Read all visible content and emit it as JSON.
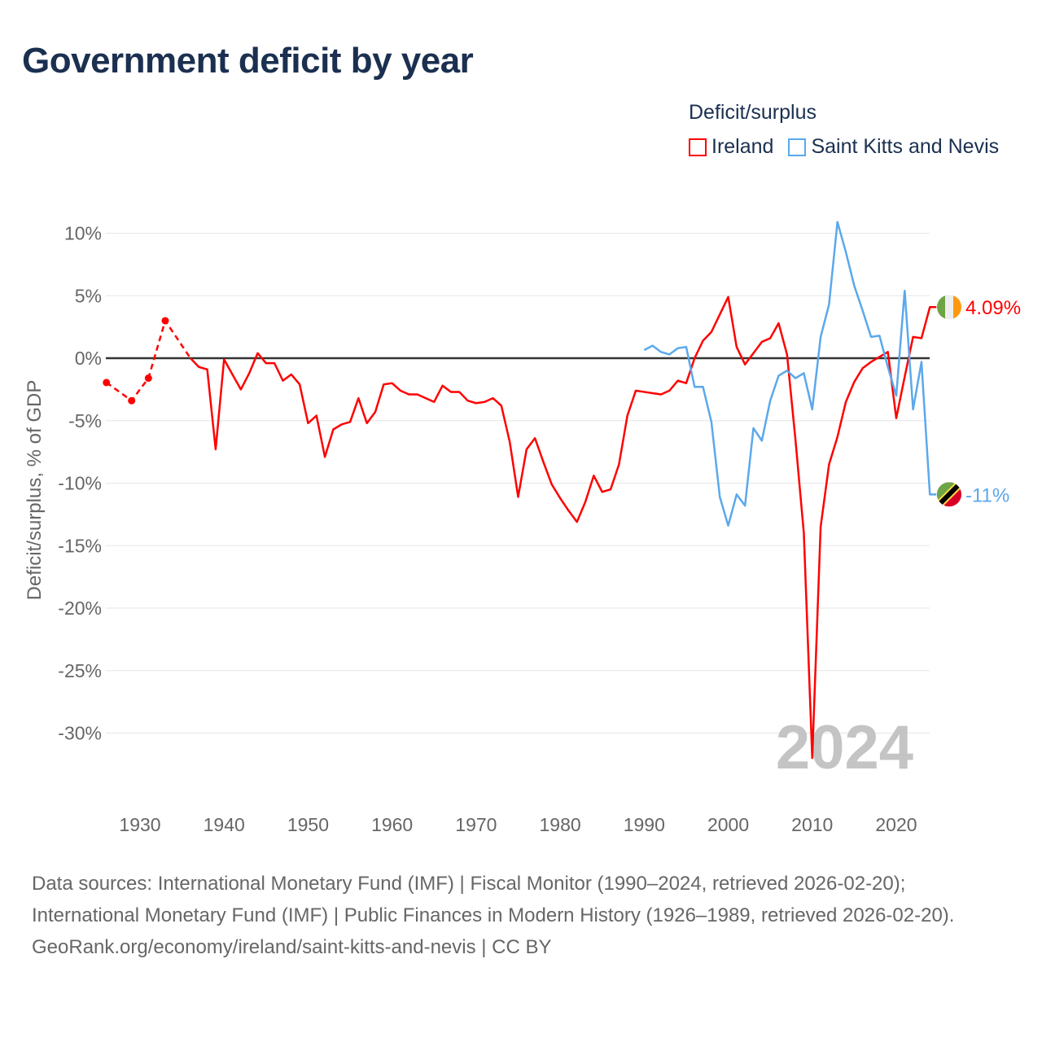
{
  "title": "Government deficit by year",
  "legend": {
    "title": "Deficit/surplus",
    "items": [
      {
        "name": "Ireland",
        "color": "#ff0000"
      },
      {
        "name": "Saint Kitts and Nevis",
        "color": "#5ba8ec"
      }
    ]
  },
  "chart_data": {
    "type": "line",
    "title": "Government deficit by year",
    "xlabel": "",
    "ylabel": "Deficit/surplus, % of GDP",
    "xlim": [
      1926,
      2024
    ],
    "ylim": [
      -33,
      11
    ],
    "yticks": [
      10,
      5,
      0,
      -5,
      -10,
      -15,
      -20,
      -25,
      -30
    ],
    "ytick_labels": [
      "10%",
      "5%",
      "0%",
      "-5%",
      "-10%",
      "-15%",
      "-20%",
      "-25%",
      "-30%"
    ],
    "xticks": [
      1930,
      1940,
      1950,
      1960,
      1970,
      1980,
      1990,
      2000,
      2010,
      2020
    ],
    "xtick_labels": [
      "1930",
      "1940",
      "1950",
      "1960",
      "1970",
      "1980",
      "1990",
      "2000",
      "2010",
      "2020"
    ],
    "grid": true,
    "legend_position": "top-right",
    "current_year_label": "2024",
    "series": [
      {
        "name": "Ireland",
        "color": "#ff0000",
        "end_label": "4.09%",
        "sparse_points": [
          [
            1926,
            -1.95
          ],
          [
            1929,
            -3.4
          ],
          [
            1931,
            -1.6
          ],
          [
            1933,
            3.0
          ],
          [
            1936,
            0.0
          ]
        ],
        "points": [
          [
            1936,
            0.0
          ],
          [
            1937,
            -0.7
          ],
          [
            1938,
            -0.9
          ],
          [
            1939,
            -7.3
          ],
          [
            1940,
            -0.1
          ],
          [
            1941,
            -1.3
          ],
          [
            1942,
            -2.5
          ],
          [
            1943,
            -1.2
          ],
          [
            1944,
            0.4
          ],
          [
            1945,
            -0.4
          ],
          [
            1946,
            -0.4
          ],
          [
            1947,
            -1.8
          ],
          [
            1948,
            -1.3
          ],
          [
            1949,
            -2.1
          ],
          [
            1950,
            -5.2
          ],
          [
            1951,
            -4.6
          ],
          [
            1952,
            -7.9
          ],
          [
            1953,
            -5.7
          ],
          [
            1954,
            -5.3
          ],
          [
            1955,
            -5.1
          ],
          [
            1956,
            -3.2
          ],
          [
            1957,
            -5.2
          ],
          [
            1958,
            -4.3
          ],
          [
            1959,
            -2.1
          ],
          [
            1960,
            -2.0
          ],
          [
            1961,
            -2.6
          ],
          [
            1962,
            -2.9
          ],
          [
            1963,
            -2.9
          ],
          [
            1964,
            -3.2
          ],
          [
            1965,
            -3.5
          ],
          [
            1966,
            -2.2
          ],
          [
            1967,
            -2.7
          ],
          [
            1968,
            -2.7
          ],
          [
            1969,
            -3.4
          ],
          [
            1970,
            -3.6
          ],
          [
            1971,
            -3.5
          ],
          [
            1972,
            -3.2
          ],
          [
            1973,
            -3.8
          ],
          [
            1974,
            -6.7
          ],
          [
            1975,
            -11.1
          ],
          [
            1976,
            -7.3
          ],
          [
            1977,
            -6.4
          ],
          [
            1978,
            -8.3
          ],
          [
            1979,
            -10.1
          ],
          [
            1980,
            -11.2
          ],
          [
            1981,
            -12.2
          ],
          [
            1982,
            -13.1
          ],
          [
            1983,
            -11.5
          ],
          [
            1984,
            -9.4
          ],
          [
            1985,
            -10.7
          ],
          [
            1986,
            -10.5
          ],
          [
            1987,
            -8.5
          ],
          [
            1988,
            -4.6
          ],
          [
            1989,
            -2.6
          ],
          [
            1990,
            -2.7
          ],
          [
            1991,
            -2.8
          ],
          [
            1992,
            -2.9
          ],
          [
            1993,
            -2.6
          ],
          [
            1994,
            -1.8
          ],
          [
            1995,
            -2.0
          ],
          [
            1996,
            0.0
          ],
          [
            1997,
            1.4
          ],
          [
            1998,
            2.1
          ],
          [
            1999,
            3.5
          ],
          [
            2000,
            4.9
          ],
          [
            2001,
            0.9
          ],
          [
            2002,
            -0.5
          ],
          [
            2003,
            0.4
          ],
          [
            2004,
            1.3
          ],
          [
            2005,
            1.6
          ],
          [
            2006,
            2.8
          ],
          [
            2007,
            0.3
          ],
          [
            2008,
            -6.5
          ],
          [
            2009,
            -14.0
          ],
          [
            2010,
            -32.0
          ],
          [
            2011,
            -13.5
          ],
          [
            2012,
            -8.5
          ],
          [
            2013,
            -6.3
          ],
          [
            2014,
            -3.5
          ],
          [
            2015,
            -1.9
          ],
          [
            2016,
            -0.8
          ],
          [
            2017,
            -0.3
          ],
          [
            2018,
            0.1
          ],
          [
            2019,
            0.5
          ],
          [
            2020,
            -4.8
          ],
          [
            2021,
            -1.5
          ],
          [
            2022,
            1.7
          ],
          [
            2023,
            1.6
          ],
          [
            2024,
            4.09
          ]
        ]
      },
      {
        "name": "Saint Kitts and Nevis",
        "color": "#5ba8ec",
        "end_label": "-11%",
        "points": [
          [
            1990,
            0.65
          ],
          [
            1991,
            1.0
          ],
          [
            1992,
            0.5
          ],
          [
            1993,
            0.3
          ],
          [
            1994,
            0.8
          ],
          [
            1995,
            0.9
          ],
          [
            1996,
            -2.3
          ],
          [
            1997,
            -2.3
          ],
          [
            1998,
            -5.1
          ],
          [
            1999,
            -11.1
          ],
          [
            2000,
            -13.4
          ],
          [
            2001,
            -10.9
          ],
          [
            2002,
            -11.8
          ],
          [
            2003,
            -5.6
          ],
          [
            2004,
            -6.6
          ],
          [
            2005,
            -3.4
          ],
          [
            2006,
            -1.4
          ],
          [
            2007,
            -1.0
          ],
          [
            2008,
            -1.6
          ],
          [
            2009,
            -1.2
          ],
          [
            2010,
            -4.1
          ],
          [
            2011,
            1.7
          ],
          [
            2012,
            4.3
          ],
          [
            2013,
            10.9
          ],
          [
            2014,
            8.5
          ],
          [
            2015,
            5.8
          ],
          [
            2016,
            3.8
          ],
          [
            2017,
            1.7
          ],
          [
            2018,
            1.8
          ],
          [
            2019,
            -0.7
          ],
          [
            2020,
            -3.0
          ],
          [
            2021,
            5.4
          ],
          [
            2022,
            -4.1
          ],
          [
            2023,
            -0.3
          ],
          [
            2024,
            -10.9
          ]
        ]
      }
    ]
  },
  "footer": {
    "sources": "Data sources: International Monetary Fund (IMF) | Fiscal Monitor (1990–2024, retrieved 2026-02-20); International Monetary Fund (IMF) | Public Finances in Modern History (1926–1989, retrieved 2026-02-20).",
    "link": "GeoRank.org/economy/ireland/saint-kitts-and-nevis | CC BY"
  }
}
